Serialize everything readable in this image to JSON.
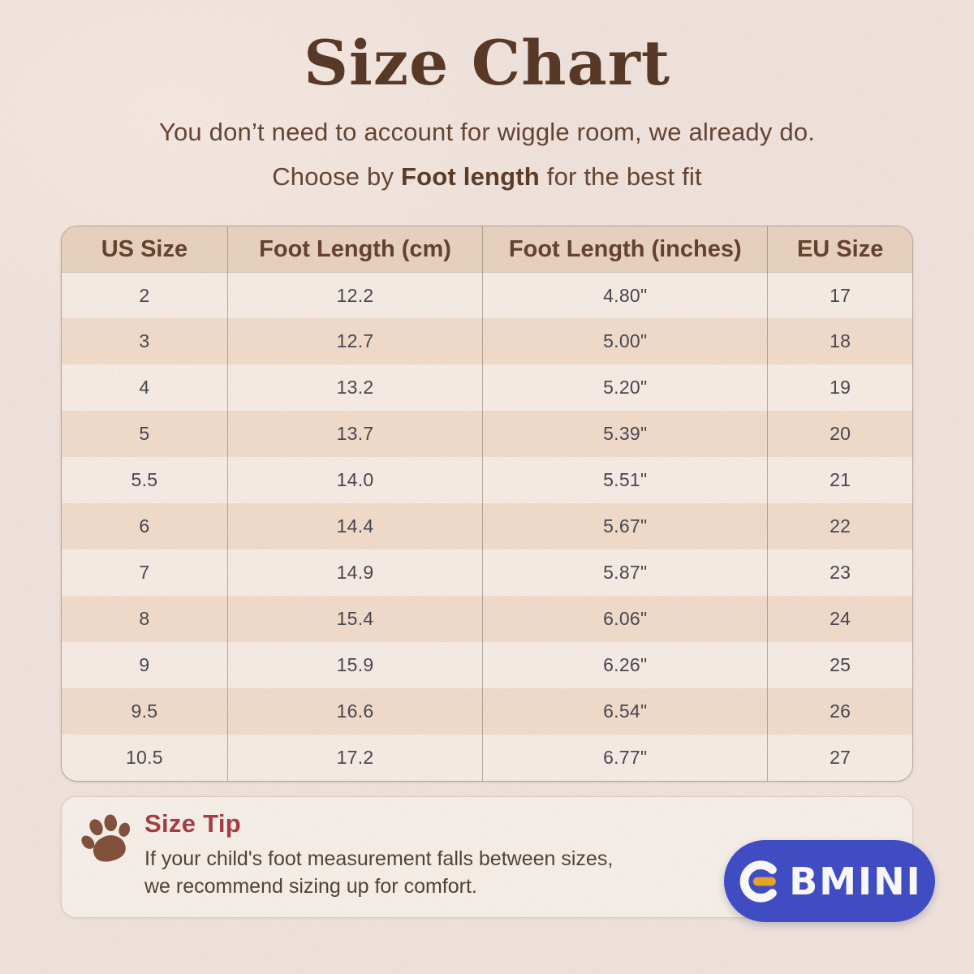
{
  "page": {
    "title": "Size Chart",
    "subtitle_line1": "You don’t need to account for wiggle room, we already do.",
    "choose_prefix": "Choose by ",
    "choose_bold": "Foot length",
    "choose_suffix": " for the best fit"
  },
  "chart_data": {
    "type": "table",
    "columns": [
      "US Size",
      "Foot Length (cm)",
      "Foot Length (inches)",
      "EU Size"
    ],
    "rows": [
      [
        "2",
        "12.2",
        "4.80\"",
        "17"
      ],
      [
        "3",
        "12.7",
        "5.00\"",
        "18"
      ],
      [
        "4",
        "13.2",
        "5.20\"",
        "19"
      ],
      [
        "5",
        "13.7",
        "5.39\"",
        "20"
      ],
      [
        "5.5",
        "14.0",
        "5.51\"",
        "21"
      ],
      [
        "6",
        "14.4",
        "5.67\"",
        "22"
      ],
      [
        "7",
        "14.9",
        "5.87\"",
        "23"
      ],
      [
        "8",
        "15.4",
        "6.06\"",
        "24"
      ],
      [
        "9",
        "15.9",
        "6.26\"",
        "25"
      ],
      [
        "9.5",
        "16.6",
        "6.54\"",
        "26"
      ],
      [
        "10.5",
        "17.2",
        "6.77\"",
        "27"
      ]
    ]
  },
  "size_tip": {
    "heading": "Size Tip",
    "line1": "If your child's foot measurement falls between sizes,",
    "line2": "we recommend sizing up for comfort."
  },
  "logo": {
    "brand": "EBMINI",
    "wordmark_text": "BMINI",
    "pill_color": "#3645c6",
    "accent_dash_color": "#e7a41f"
  },
  "colors": {
    "background": "#f2e5df",
    "title": "#50301d",
    "header_row_bg": "#e9d3c0",
    "row_light": "#f8efe8",
    "row_dark": "#f3ddcc",
    "tip_heading": "#a1333e",
    "paw": "#7c4a34"
  }
}
